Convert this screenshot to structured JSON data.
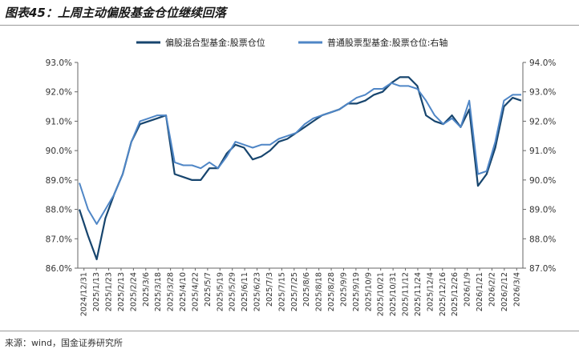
{
  "title": "图表45：上周主动偏股基金仓位继续回落",
  "source": "来源：wind，国金证券研究所",
  "chart_data": {
    "type": "line",
    "title": "图表45：上周主动偏股基金仓位继续回落",
    "legend_position": "top-center",
    "grid": false,
    "x_labels": [
      "2024/12/31",
      "2025/1/13",
      "2025/1/23",
      "2025/2/13",
      "2025/2/24",
      "2025/3/6",
      "2025/3/18",
      "2025/3/28",
      "2025/4/10",
      "2025/4/22",
      "2025/5/7",
      "2025/5/19",
      "2025/5/29",
      "2025/6/11",
      "2025/6/23",
      "2025/7/3",
      "2025/7/15",
      "2025/7/25",
      "2025/8/6",
      "2025/8/18",
      "2025/8/28",
      "2025/9/9",
      "2025/9/19",
      "2025/10/9",
      "2025/10/21",
      "2025/10/31",
      "2025/11/12",
      "2025/11/24",
      "2025/12/4",
      "2025/12/16",
      "2025/12/26",
      "2026/1/9",
      "2026/1/21",
      "2026/2/2",
      "2026/2/12",
      "2026/3/4"
    ],
    "y_left": {
      "label": "",
      "min": 86.0,
      "max": 93.0,
      "step": 1.0,
      "ticks": [
        "86.0%",
        "87.0%",
        "88.0%",
        "89.0%",
        "90.0%",
        "91.0%",
        "92.0%",
        "93.0%"
      ]
    },
    "y_right": {
      "label": "",
      "min": 87.0,
      "max": 94.0,
      "step": 1.0,
      "ticks": [
        "87.0%",
        "88.0%",
        "89.0%",
        "90.0%",
        "91.0%",
        "92.0%",
        "93.0%",
        "94.0%"
      ]
    },
    "series": [
      {
        "name": "偏股混合型基金:股票仓位",
        "axis": "left",
        "color": "#17456e",
        "values": [
          88.0,
          87.1,
          86.3,
          87.7,
          88.5,
          89.2,
          90.3,
          90.9,
          91.0,
          91.1,
          91.2,
          89.2,
          89.1,
          89.0,
          89.0,
          89.4,
          89.4,
          89.9,
          90.2,
          90.1,
          89.7,
          89.8,
          90.0,
          90.3,
          90.4,
          90.6,
          90.8,
          91.0,
          91.2,
          91.3,
          91.4,
          91.6,
          91.6,
          91.7,
          91.9,
          92.0,
          92.3,
          92.5,
          92.5,
          92.2,
          91.2,
          91.0,
          90.9,
          91.2,
          90.8,
          91.4,
          88.8,
          89.2,
          90.1,
          91.5,
          91.8,
          91.7
        ]
      },
      {
        "name": "普通股票型基金:股票仓位:右轴",
        "axis": "right",
        "color": "#4f86c6",
        "values": [
          89.9,
          89.0,
          88.5,
          89.0,
          89.5,
          90.2,
          91.3,
          92.0,
          92.1,
          92.2,
          92.2,
          90.6,
          90.5,
          90.5,
          90.4,
          90.6,
          90.4,
          90.8,
          91.3,
          91.2,
          91.1,
          91.2,
          91.2,
          91.4,
          91.5,
          91.6,
          91.9,
          92.1,
          92.2,
          92.3,
          92.4,
          92.6,
          92.8,
          92.9,
          93.1,
          93.1,
          93.3,
          93.2,
          93.2,
          93.1,
          92.7,
          92.2,
          91.9,
          92.1,
          91.8,
          92.7,
          90.2,
          90.3,
          91.3,
          92.7,
          92.9,
          92.9
        ]
      }
    ]
  }
}
